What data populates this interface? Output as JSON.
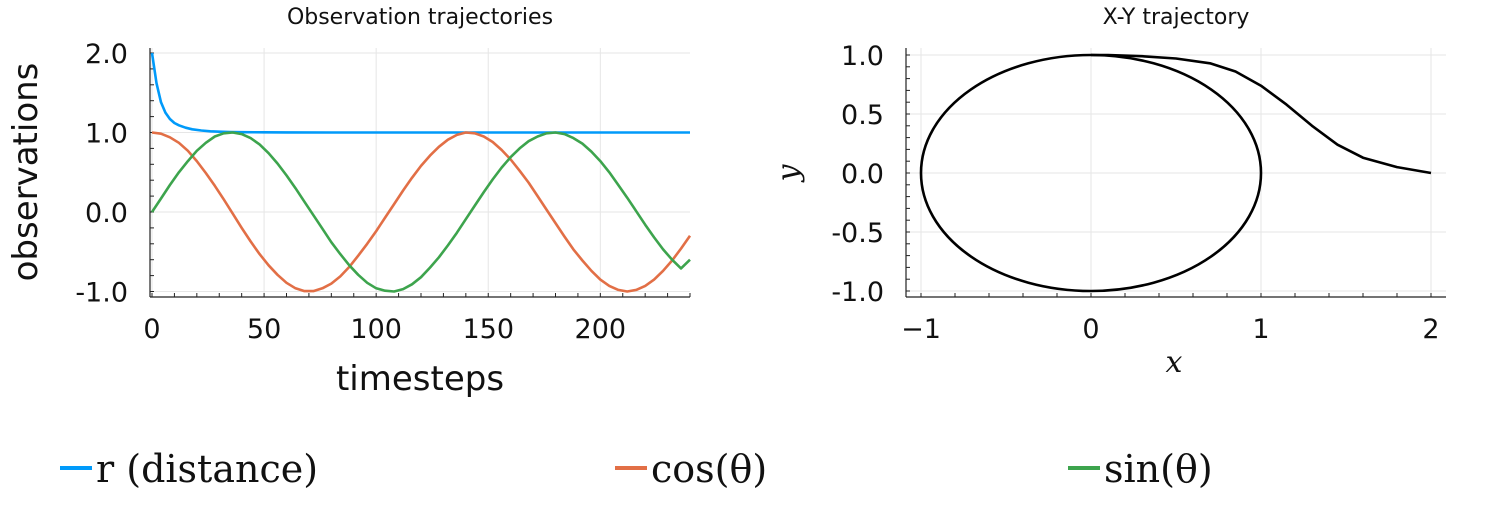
{
  "chart_data": [
    {
      "type": "line",
      "title": "Observation trajectories",
      "xlabel": "timesteps",
      "ylabel": "observations",
      "xlim": [
        0,
        240
      ],
      "ylim": [
        -1.05,
        2.1
      ],
      "xticks": [
        "0",
        "50",
        "100",
        "150",
        "200"
      ],
      "yticks": [
        "2.0",
        "1.0",
        "0.0",
        "-1.0"
      ],
      "grid": true,
      "series": [
        {
          "name": "r (distance)",
          "color": "#009AFA",
          "x": [
            0,
            2,
            4,
            6,
            8,
            10,
            12,
            15,
            18,
            22,
            26,
            30,
            35,
            40,
            50,
            60,
            80,
            100,
            150,
            200,
            240
          ],
          "y": [
            2.0,
            1.62,
            1.38,
            1.25,
            1.17,
            1.12,
            1.09,
            1.06,
            1.04,
            1.025,
            1.015,
            1.01,
            1.006,
            1.004,
            1.002,
            1.001,
            1.0,
            1.0,
            1.0,
            1.0,
            1.0
          ]
        },
        {
          "name": "cos(θ)",
          "color": "#E26F46",
          "x": [
            0,
            4,
            8,
            12,
            16,
            20,
            24,
            28,
            32,
            36,
            40,
            44,
            48,
            52,
            56,
            60,
            64,
            68,
            72,
            76,
            80,
            84,
            88,
            92,
            96,
            100,
            104,
            108,
            112,
            116,
            120,
            124,
            128,
            132,
            136,
            140,
            144,
            148,
            152,
            156,
            160,
            164,
            168,
            172,
            176,
            180,
            184,
            188,
            192,
            196,
            200,
            204,
            208,
            212,
            216,
            220,
            224,
            228,
            232,
            236,
            240
          ],
          "y": [
            1.0,
            0.985,
            0.94,
            0.87,
            0.77,
            0.64,
            0.49,
            0.33,
            0.16,
            -0.02,
            -0.2,
            -0.37,
            -0.53,
            -0.67,
            -0.79,
            -0.89,
            -0.96,
            -0.995,
            -0.995,
            -0.96,
            -0.9,
            -0.81,
            -0.69,
            -0.55,
            -0.4,
            -0.24,
            -0.07,
            0.1,
            0.27,
            0.43,
            0.58,
            0.71,
            0.82,
            0.91,
            0.97,
            1.0,
            0.99,
            0.95,
            0.88,
            0.78,
            0.66,
            0.52,
            0.37,
            0.2,
            0.03,
            -0.14,
            -0.31,
            -0.47,
            -0.61,
            -0.74,
            -0.85,
            -0.93,
            -0.98,
            -1.0,
            -0.98,
            -0.93,
            -0.85,
            -0.74,
            -0.61,
            -0.46,
            -0.3
          ]
        },
        {
          "name": "sin(θ)",
          "color": "#3DA44D",
          "x": [
            0,
            4,
            8,
            12,
            16,
            20,
            24,
            28,
            32,
            36,
            40,
            44,
            48,
            52,
            56,
            60,
            64,
            68,
            72,
            76,
            80,
            84,
            88,
            92,
            96,
            100,
            104,
            108,
            112,
            116,
            120,
            124,
            128,
            132,
            136,
            140,
            144,
            148,
            152,
            156,
            160,
            164,
            168,
            172,
            176,
            180,
            184,
            188,
            192,
            196,
            200,
            204,
            208,
            212,
            216,
            220,
            224,
            228,
            232,
            236,
            240
          ],
          "y": [
            0.0,
            0.17,
            0.34,
            0.5,
            0.64,
            0.77,
            0.87,
            0.95,
            0.99,
            1.0,
            0.98,
            0.93,
            0.85,
            0.74,
            0.61,
            0.46,
            0.3,
            0.13,
            -0.04,
            -0.21,
            -0.38,
            -0.53,
            -0.67,
            -0.79,
            -0.89,
            -0.96,
            -0.99,
            -1.0,
            -0.97,
            -0.91,
            -0.82,
            -0.7,
            -0.57,
            -0.42,
            -0.26,
            -0.09,
            0.08,
            0.25,
            0.41,
            0.56,
            0.69,
            0.8,
            0.89,
            0.95,
            0.99,
            1.0,
            0.98,
            0.93,
            0.86,
            0.76,
            0.64,
            0.5,
            0.34,
            0.18,
            0.01,
            -0.16,
            -0.32,
            -0.47,
            -0.6,
            -0.71,
            -0.6
          ]
        }
      ]
    },
    {
      "type": "line",
      "title": "X-Y trajectory",
      "xlabel": "x",
      "ylabel": "y",
      "xlim": [
        -1.1,
        2.1
      ],
      "ylim": [
        -1.05,
        1.05
      ],
      "xticks": [
        "−1",
        "0",
        "1",
        "2"
      ],
      "yticks": [
        "1.0",
        "0.5",
        "0.0",
        "-0.5",
        "-1.0"
      ],
      "grid": true,
      "series": [
        {
          "color": "#000000",
          "x": [
            2.0,
            1.8,
            1.6,
            1.45,
            1.3,
            1.15,
            1.0,
            0.85,
            0.7,
            0.5,
            0.3,
            0.1,
            0.0
          ],
          "y": [
            0.0,
            0.05,
            0.13,
            0.24,
            0.4,
            0.58,
            0.74,
            0.86,
            0.93,
            0.97,
            0.99,
            1.0,
            1.0
          ],
          "circle": {
            "cx": 0,
            "cy": 0,
            "r": 1
          }
        }
      ]
    }
  ],
  "legend": {
    "items": [
      {
        "label": "r (distance)",
        "color": "#009AFA"
      },
      {
        "label": "cos(θ)",
        "color": "#E26F46"
      },
      {
        "label": "sin(θ)",
        "color": "#3DA44D"
      }
    ]
  }
}
